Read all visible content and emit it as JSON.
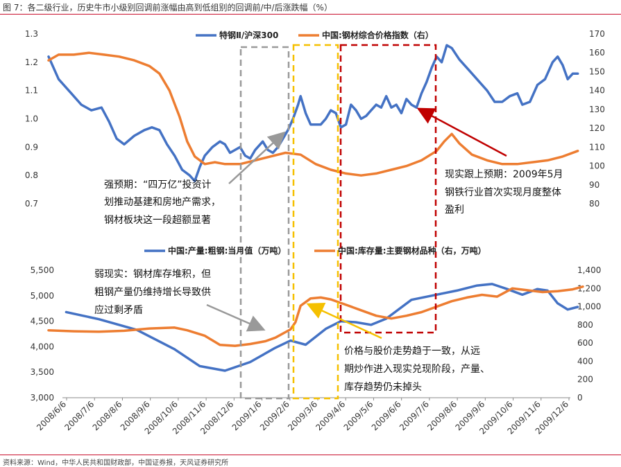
{
  "title": "图 7：各二级行业，历史牛市小级别回调前涨幅由高到低组别的回调前/中/后涨跌幅（%）",
  "source": "资料来源：Wind，中华人民共和国财政部，中国证券报，天风证券研究所",
  "colors": {
    "blue": "#4472c4",
    "orange": "#ed7d31",
    "gray_box": "#999999",
    "yellow_box": "#f5c000",
    "red_box": "#c00000",
    "arrow_red": "#c00000",
    "arrow_gray": "#999999",
    "arrow_yellow": "#f5c000"
  },
  "chart_data": [
    {
      "type": "line",
      "left_axis": {
        "ticks": [
          "1.3",
          "1.2",
          "1.1",
          "1.0",
          "0.9",
          "0.8",
          "0.7"
        ],
        "range": [
          0.7,
          1.3
        ]
      },
      "right_axis": {
        "ticks": [
          "170",
          "160",
          "150",
          "140",
          "130",
          "120",
          "110",
          "100",
          "90",
          "80"
        ],
        "range": [
          80,
          170
        ]
      },
      "legend": "top-center",
      "series": [
        {
          "name": "特钢Ⅱ/沪深300",
          "axis": "left",
          "color": "#4472c4",
          "points": [
            [
              0,
              1.22
            ],
            [
              4,
              1.14
            ],
            [
              9,
              1.09
            ],
            [
              13,
              1.05
            ],
            [
              17,
              1.03
            ],
            [
              21,
              1.04
            ],
            [
              24,
              0.99
            ],
            [
              27,
              0.93
            ],
            [
              30,
              0.91
            ],
            [
              34,
              0.94
            ],
            [
              38,
              0.96
            ],
            [
              41,
              0.97
            ],
            [
              44,
              0.96
            ],
            [
              47,
              0.91
            ],
            [
              50,
              0.87
            ],
            [
              53,
              0.82
            ],
            [
              56,
              0.8
            ],
            [
              58,
              0.78
            ],
            [
              60,
              0.83
            ],
            [
              62,
              0.87
            ],
            [
              65,
              0.9
            ],
            [
              68,
              0.92
            ],
            [
              70,
              0.91
            ],
            [
              72,
              0.88
            ],
            [
              74,
              0.89
            ],
            [
              76,
              0.9
            ],
            [
              78,
              0.87
            ],
            [
              80,
              0.86
            ],
            [
              82,
              0.89
            ],
            [
              85,
              0.92
            ],
            [
              87,
              0.89
            ],
            [
              89,
              0.88
            ],
            [
              91,
              0.9
            ],
            [
              93,
              0.93
            ],
            [
              95,
              0.96
            ],
            [
              97,
              1.0
            ],
            [
              99,
              1.05
            ],
            [
              100,
              1.08
            ],
            [
              102,
              1.02
            ],
            [
              104,
              0.98
            ],
            [
              106,
              0.98
            ],
            [
              108,
              0.98
            ],
            [
              110,
              1.0
            ],
            [
              112,
              1.03
            ],
            [
              114,
              1.02
            ],
            [
              116,
              0.97
            ],
            [
              118,
              0.98
            ],
            [
              120,
              1.05
            ],
            [
              122,
              1.03
            ],
            [
              124,
              1.0
            ],
            [
              126,
              1.01
            ],
            [
              128,
              1.03
            ],
            [
              130,
              1.05
            ],
            [
              132,
              1.04
            ],
            [
              134,
              1.08
            ],
            [
              136,
              1.04
            ],
            [
              138,
              1.05
            ],
            [
              140,
              1.02
            ],
            [
              142,
              1.07
            ],
            [
              144,
              1.05
            ],
            [
              146,
              1.04
            ],
            [
              148,
              1.09
            ],
            [
              150,
              1.13
            ],
            [
              152,
              1.18
            ],
            [
              154,
              1.22
            ],
            [
              156,
              1.2
            ],
            [
              158,
              1.26
            ],
            [
              160,
              1.25
            ],
            [
              163,
              1.21
            ],
            [
              167,
              1.17
            ],
            [
              171,
              1.13
            ],
            [
              174,
              1.1
            ],
            [
              177,
              1.06
            ],
            [
              180,
              1.06
            ],
            [
              183,
              1.08
            ],
            [
              186,
              1.09
            ],
            [
              188,
              1.05
            ],
            [
              191,
              1.06
            ],
            [
              194,
              1.12
            ],
            [
              197,
              1.14
            ],
            [
              200,
              1.2
            ],
            [
              202,
              1.22
            ],
            [
              204,
              1.19
            ],
            [
              206,
              1.14
            ],
            [
              208,
              1.16
            ],
            [
              210,
              1.16
            ]
          ]
        },
        {
          "name": "中国:钢材综合价格指数（右）",
          "axis": "right",
          "color": "#ed7d31",
          "points": [
            [
              0,
              156
            ],
            [
              4,
              159
            ],
            [
              10,
              159
            ],
            [
              16,
              160
            ],
            [
              22,
              159
            ],
            [
              28,
              158
            ],
            [
              34,
              156
            ],
            [
              40,
              153
            ],
            [
              44,
              149
            ],
            [
              48,
              140
            ],
            [
              52,
              126
            ],
            [
              55,
              113
            ],
            [
              58,
              105
            ],
            [
              62,
              101
            ],
            [
              66,
              102
            ],
            [
              70,
              101
            ],
            [
              76,
              101
            ],
            [
              82,
              103
            ],
            [
              88,
              105
            ],
            [
              94,
              107
            ],
            [
              100,
              106
            ],
            [
              106,
              101
            ],
            [
              112,
              98
            ],
            [
              118,
              96
            ],
            [
              124,
              95
            ],
            [
              130,
              96
            ],
            [
              136,
              98
            ],
            [
              142,
              100
            ],
            [
              148,
              103
            ],
            [
              154,
              108
            ],
            [
              157,
              113
            ],
            [
              160,
              117
            ],
            [
              163,
              112
            ],
            [
              168,
              106
            ],
            [
              174,
              103
            ],
            [
              180,
              101
            ],
            [
              186,
              101
            ],
            [
              192,
              102
            ],
            [
              198,
              103
            ],
            [
              204,
              105
            ],
            [
              210,
              108
            ]
          ]
        }
      ]
    },
    {
      "type": "line",
      "left_axis": {
        "ticks": [
          "5,500",
          "5,000",
          "4,500",
          "4,000",
          "3,500",
          "3,000"
        ],
        "range": [
          3000,
          5500
        ]
      },
      "right_axis": {
        "ticks": [
          "1,400",
          "1,200",
          "1,000",
          "800",
          "600",
          "400",
          "200",
          "0"
        ],
        "range": [
          0,
          1400
        ]
      },
      "legend": "top-center",
      "x_ticks": [
        "2008/6/6",
        "2008/7/6",
        "2008/8/6",
        "2008/9/6",
        "2008/10/6",
        "2008/11/6",
        "2008/12/6",
        "2009/1/6",
        "2009/2/6",
        "2009/3/6",
        "2009/4/6",
        "2009/5/6",
        "2009/6/6",
        "2009/7/6",
        "2009/8/6",
        "2009/9/6",
        "2009/10/6",
        "2009/11/6",
        "2009/12/6"
      ],
      "series": [
        {
          "name": "中国:产量:粗钢:当月值（万吨）",
          "axis": "left",
          "color": "#4472c4",
          "points": [
            [
              7,
              4680
            ],
            [
              20,
              4540
            ],
            [
              35,
              4330
            ],
            [
              50,
              3950
            ],
            [
              60,
              3620
            ],
            [
              70,
              3530
            ],
            [
              80,
              3700
            ],
            [
              90,
              3980
            ],
            [
              96,
              4120
            ],
            [
              102,
              4040
            ],
            [
              110,
              4350
            ],
            [
              116,
              4500
            ],
            [
              122,
              4480
            ],
            [
              128,
              4430
            ],
            [
              134,
              4550
            ],
            [
              144,
              4920
            ],
            [
              154,
              5020
            ],
            [
              162,
              5100
            ],
            [
              170,
              5200
            ],
            [
              176,
              5230
            ],
            [
              182,
              5130
            ],
            [
              188,
              5020
            ],
            [
              194,
              5130
            ],
            [
              198,
              5100
            ],
            [
              202,
              4850
            ],
            [
              206,
              4730
            ],
            [
              210,
              4780
            ]
          ]
        },
        {
          "name": "中国:库存量:主要钢材品种（右，万吨）",
          "axis": "right",
          "color": "#ed7d31",
          "points": [
            [
              0,
              740
            ],
            [
              10,
              730
            ],
            [
              20,
              725
            ],
            [
              30,
              735
            ],
            [
              40,
              760
            ],
            [
              50,
              770
            ],
            [
              55,
              740
            ],
            [
              62,
              680
            ],
            [
              68,
              580
            ],
            [
              74,
              570
            ],
            [
              80,
              590
            ],
            [
              86,
              620
            ],
            [
              90,
              660
            ],
            [
              94,
              720
            ],
            [
              96,
              750
            ],
            [
              98,
              830
            ],
            [
              100,
              1010
            ],
            [
              104,
              1090
            ],
            [
              108,
              1100
            ],
            [
              112,
              1080
            ],
            [
              118,
              1020
            ],
            [
              124,
              960
            ],
            [
              130,
              900
            ],
            [
              136,
              870
            ],
            [
              142,
              900
            ],
            [
              148,
              940
            ],
            [
              154,
              1000
            ],
            [
              160,
              1060
            ],
            [
              166,
              1100
            ],
            [
              172,
              1130
            ],
            [
              178,
              1110
            ],
            [
              184,
              1200
            ],
            [
              190,
              1180
            ],
            [
              196,
              1160
            ],
            [
              202,
              1170
            ],
            [
              208,
              1190
            ],
            [
              212,
              1220
            ]
          ]
        }
      ]
    }
  ],
  "annotations": {
    "strong_1": "强预期：“四万亿”投资计",
    "strong_2": "划推动基建和房地产需求，",
    "strong_3": "钢材板块这一段超额显著",
    "reality_1": "现实跟上预期：2009年5月",
    "reality_2": "钢铁行业首次实现月度整体",
    "reality_3": "盈利",
    "weak_1": "弱现实：钢材库存堆积，但",
    "weak_2": "粗钢产量仍维持增长导致供",
    "weak_3": "应过剩矛盾",
    "price_1": "价格与股价走势趋于一致，从远",
    "price_2": "期炒作进入现实兑现阶段，产量、",
    "price_3": "库存趋势仍未掉头"
  }
}
